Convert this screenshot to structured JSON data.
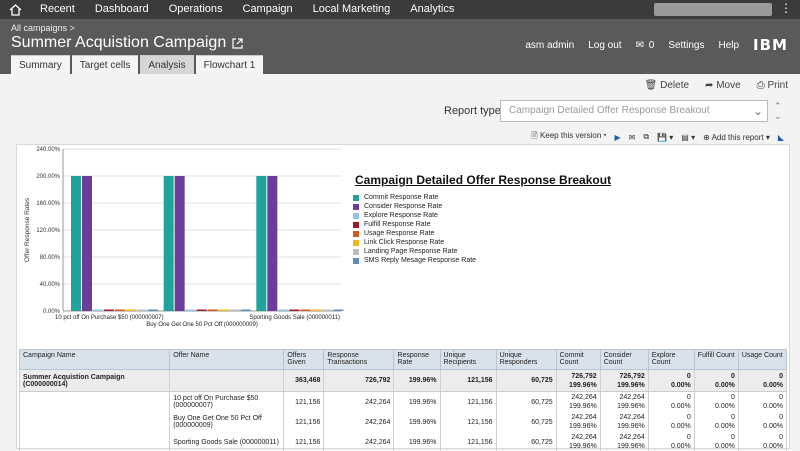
{
  "nav": {
    "items": [
      "Recent",
      "Dashboard",
      "Operations",
      "Campaign",
      "Local Marketing",
      "Analytics"
    ]
  },
  "header": {
    "breadcrumb": "All campaigns >",
    "title": "Summer Acquistion Campaign",
    "user": "asm admin",
    "logout": "Log out",
    "messages": "0",
    "settings": "Settings",
    "help": "Help",
    "brand": "IBM"
  },
  "tabs": [
    "Summary",
    "Target cells",
    "Analysis",
    "Flowchart 1"
  ],
  "actions": {
    "delete": "Delete",
    "move": "Move",
    "print": "Print"
  },
  "report_type": {
    "label": "Report type",
    "value": "Campaign Detailed Offer Response Breakout"
  },
  "toolbar": {
    "keep": "Keep this version",
    "add": "Add this report"
  },
  "report": {
    "title": "Campaign Detailed Offer Response Breakout",
    "legend": [
      {
        "label": "Commit Response Rate",
        "color": "#1fa39a"
      },
      {
        "label": "Consider Response Rate",
        "color": "#6a3d9a"
      },
      {
        "label": "Explore Response Rate",
        "color": "#8fc3e8"
      },
      {
        "label": "Fulfill Response Rate",
        "color": "#a01830"
      },
      {
        "label": "Usage Response Rate",
        "color": "#d85a1a"
      },
      {
        "label": "Link Click Response Rate",
        "color": "#f0b81e"
      },
      {
        "label": "Landing Page Response Rate",
        "color": "#bcbcbc"
      },
      {
        "label": "SMS Reply Mesage Response Rate",
        "color": "#5b8cc0"
      }
    ]
  },
  "chart_data": {
    "type": "bar",
    "ylabel": "Offer Response Rates",
    "ylim": [
      0,
      240
    ],
    "yticks": [
      "0.00%",
      "40.00%",
      "80.00%",
      "120.00%",
      "160.00%",
      "200.00%",
      "240.00%"
    ],
    "categories": [
      "10 pct off On Purchase $50 (000000007)",
      "Buy One Get One 50 Pct Off (000000009)",
      "Sporting Goods Sale (000000011)"
    ],
    "series": [
      {
        "name": "Commit Response Rate",
        "values": [
          200,
          200,
          200
        ]
      },
      {
        "name": "Consider Response Rate",
        "values": [
          200,
          200,
          200
        ]
      },
      {
        "name": "Explore Response Rate",
        "values": [
          0,
          0,
          0
        ]
      },
      {
        "name": "Fulfill Response Rate",
        "values": [
          0,
          0,
          0
        ]
      },
      {
        "name": "Usage Response Rate",
        "values": [
          0,
          0,
          0
        ]
      },
      {
        "name": "Link Click Response Rate",
        "values": [
          0,
          0,
          0
        ]
      },
      {
        "name": "Landing Page Response Rate",
        "values": [
          0,
          0,
          0
        ]
      },
      {
        "name": "SMS Reply Mesage Response Rate",
        "values": [
          0,
          0,
          0
        ]
      }
    ]
  },
  "table": {
    "headers": [
      "Campaign Name",
      "Offer Name",
      "Offers Given",
      "Response Transactions",
      "Response Rate",
      "Unique Recipients",
      "Unique Responders",
      "Commit Count",
      "Consider Count",
      "Explore Count",
      "Fulfill Count",
      "Usage Count"
    ],
    "campaign": {
      "name": "Summer Acquistion Campaign (C000000014)",
      "offers_given": "363,468",
      "transactions": "726,792",
      "rate": "199.96%",
      "recipients": "121,156",
      "responders": "60,725",
      "commit": [
        "726,792",
        "199.96%"
      ],
      "consider": [
        "726,792",
        "199.96%"
      ],
      "explore": [
        "0",
        "0.00%"
      ],
      "fulfill": [
        "0",
        "0.00%"
      ],
      "usage": [
        "0",
        "0.00%"
      ]
    },
    "rows": [
      {
        "offer": "10 pct off On Purchase $50 (000000007)",
        "given": "121,156",
        "trans": "242,264",
        "rate": "199.96%",
        "recip": "121,156",
        "resp": "60,725",
        "commit": [
          "242,264",
          "199.96%"
        ],
        "consider": [
          "242,264",
          "199.96%"
        ],
        "explore": [
          "0",
          "0.00%"
        ],
        "fulfill": [
          "0",
          "0.00%"
        ],
        "usage": [
          "0",
          "0.00%"
        ]
      },
      {
        "offer": "Buy One Get One 50 Pct Off (000000009)",
        "given": "121,156",
        "trans": "242,264",
        "rate": "199.96%",
        "recip": "121,156",
        "resp": "60,725",
        "commit": [
          "242,264",
          "199.96%"
        ],
        "consider": [
          "242,264",
          "199.96%"
        ],
        "explore": [
          "0",
          "0.00%"
        ],
        "fulfill": [
          "0",
          "0.00%"
        ],
        "usage": [
          "0",
          "0.00%"
        ]
      },
      {
        "offer": "Sporting Goods Sale (000000011)",
        "given": "121,156",
        "trans": "242,264",
        "rate": "199.96%",
        "recip": "121,156",
        "resp": "60,725",
        "commit": [
          "242,264",
          "199.96%"
        ],
        "consider": [
          "242,264",
          "199.96%"
        ],
        "explore": [
          "0",
          "0.00%"
        ],
        "fulfill": [
          "0",
          "0.00%"
        ],
        "usage": [
          "0",
          "0.00%"
        ]
      }
    ]
  }
}
